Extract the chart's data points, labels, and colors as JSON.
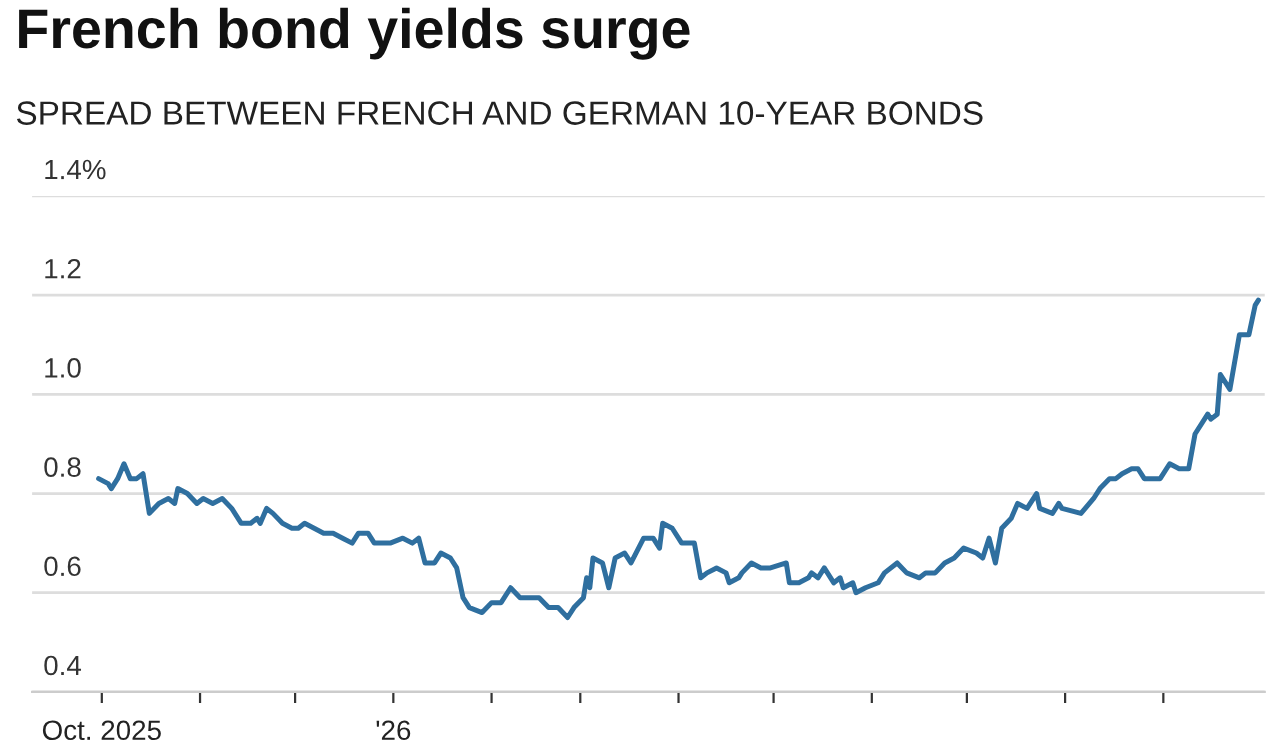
{
  "chart_data": {
    "type": "line",
    "title": "French bond yields surge",
    "subtitle": "SPREAD BETWEEN FRENCH AND GERMAN 10-YEAR BONDS",
    "x": [
      "2025-09-30",
      "2025-10-03",
      "2025-10-04",
      "2025-10-06",
      "2025-10-08",
      "2025-10-10",
      "2025-10-12",
      "2025-10-14",
      "2025-10-16",
      "2025-10-19",
      "2025-10-22",
      "2025-10-24",
      "2025-10-25",
      "2025-10-28",
      "2025-10-31",
      "2025-11-02",
      "2025-11-05",
      "2025-11-08",
      "2025-11-11",
      "2025-11-14",
      "2025-11-17",
      "2025-11-19",
      "2025-11-20",
      "2025-11-22",
      "2025-11-24",
      "2025-11-27",
      "2025-11-30",
      "2025-12-02",
      "2025-12-04",
      "2025-12-07",
      "2025-12-10",
      "2025-12-13",
      "2025-12-16",
      "2025-12-19",
      "2025-12-21",
      "2025-12-24",
      "2025-12-26",
      "2025-12-31",
      "2026-01-04",
      "2026-01-07",
      "2026-01-09",
      "2026-01-11",
      "2026-01-14",
      "2026-01-16",
      "2026-01-19",
      "2026-01-21",
      "2026-01-23",
      "2026-01-25",
      "2026-01-29",
      "2026-02-01",
      "2026-02-04",
      "2026-02-07",
      "2026-02-10",
      "2026-02-12",
      "2026-02-16",
      "2026-02-19",
      "2026-02-22",
      "2026-02-25",
      "2026-02-27",
      "2026-03-02",
      "2026-03-03",
      "2026-03-04",
      "2026-03-05",
      "2026-03-08",
      "2026-03-10",
      "2026-03-12",
      "2026-03-15",
      "2026-03-17",
      "2026-03-21",
      "2026-03-24",
      "2026-03-26",
      "2026-03-27",
      "2026-03-30",
      "2026-04-02",
      "2026-04-06",
      "2026-04-08",
      "2026-04-10",
      "2026-04-13",
      "2026-04-16",
      "2026-04-17",
      "2026-04-20",
      "2026-04-21",
      "2026-04-24",
      "2026-04-27",
      "2026-04-30",
      "2026-05-05",
      "2026-05-06",
      "2026-05-09",
      "2026-05-12",
      "2026-05-13",
      "2026-05-15",
      "2026-05-17",
      "2026-05-20",
      "2026-05-22",
      "2026-05-23",
      "2026-05-26",
      "2026-05-27",
      "2026-05-30",
      "2026-06-03",
      "2026-06-05",
      "2026-06-09",
      "2026-06-12",
      "2026-06-16",
      "2026-06-18",
      "2026-06-21",
      "2026-06-24",
      "2026-06-27",
      "2026-06-30",
      "2026-07-04",
      "2026-07-06",
      "2026-07-08",
      "2026-07-10",
      "2026-07-12",
      "2026-07-15",
      "2026-07-17",
      "2026-07-20",
      "2026-07-23",
      "2026-07-24",
      "2026-07-28",
      "2026-07-30",
      "2026-07-31",
      "2026-08-06",
      "2026-08-10",
      "2026-08-12",
      "2026-08-15",
      "2026-08-17",
      "2026-08-19",
      "2026-08-22",
      "2026-08-24",
      "2026-08-26",
      "2026-08-29",
      "2026-08-31",
      "2026-09-03",
      "2026-09-06",
      "2026-09-09",
      "2026-09-11",
      "2026-09-15",
      "2026-09-16",
      "2026-09-18",
      "2026-09-19",
      "2026-09-22",
      "2026-09-25",
      "2026-09-28",
      "2026-09-30",
      "2026-10-01"
    ],
    "series": [
      {
        "color": "#2f6f9f",
        "values": [
          0.83,
          0.82,
          0.81,
          0.83,
          0.86,
          0.83,
          0.83,
          0.84,
          0.76,
          0.78,
          0.79,
          0.78,
          0.81,
          0.8,
          0.78,
          0.79,
          0.78,
          0.79,
          0.77,
          0.74,
          0.74,
          0.75,
          0.74,
          0.77,
          0.76,
          0.74,
          0.73,
          0.73,
          0.74,
          0.73,
          0.72,
          0.72,
          0.71,
          0.7,
          0.72,
          0.72,
          0.7,
          0.7,
          0.71,
          0.7,
          0.71,
          0.66,
          0.66,
          0.68,
          0.67,
          0.65,
          0.59,
          0.57,
          0.56,
          0.58,
          0.58,
          0.61,
          0.59,
          0.59,
          0.59,
          0.57,
          0.57,
          0.55,
          0.57,
          0.59,
          0.63,
          0.61,
          0.67,
          0.66,
          0.61,
          0.67,
          0.68,
          0.66,
          0.71,
          0.71,
          0.69,
          0.74,
          0.73,
          0.7,
          0.7,
          0.63,
          0.64,
          0.65,
          0.64,
          0.62,
          0.63,
          0.64,
          0.66,
          0.65,
          0.65,
          0.66,
          0.62,
          0.62,
          0.63,
          0.64,
          0.63,
          0.65,
          0.62,
          0.63,
          0.61,
          0.62,
          0.6,
          0.61,
          0.62,
          0.64,
          0.66,
          0.64,
          0.63,
          0.64,
          0.64,
          0.66,
          0.67,
          0.69,
          0.68,
          0.67,
          0.71,
          0.66,
          0.73,
          0.75,
          0.78,
          0.77,
          0.8,
          0.77,
          0.76,
          0.78,
          0.77,
          0.76,
          0.79,
          0.81,
          0.83,
          0.83,
          0.84,
          0.85,
          0.85,
          0.83,
          0.83,
          0.83,
          0.86,
          0.85,
          0.85,
          0.92,
          0.96,
          0.95,
          0.96,
          1.04,
          1.01,
          1.12,
          1.12,
          1.18,
          1.19
        ]
      }
    ],
    "xlim": [
      "2025-09-09",
      "2026-10-03"
    ],
    "xticks": [
      {
        "value": "2025-10-01",
        "label": "Oct. 2025"
      },
      {
        "value": "2025-11-01",
        "label": null
      },
      {
        "value": "2025-12-01",
        "label": null
      },
      {
        "value": "2026-01-01",
        "label": "'26"
      },
      {
        "value": "2026-02-01",
        "label": null
      },
      {
        "value": "2026-03-01",
        "label": null
      },
      {
        "value": "2026-04-01",
        "label": null
      },
      {
        "value": "2026-05-01",
        "label": null
      },
      {
        "value": "2026-06-01",
        "label": null
      },
      {
        "value": "2026-07-01",
        "label": null
      },
      {
        "value": "2026-08-01",
        "label": null
      },
      {
        "value": "2026-09-01",
        "label": null
      }
    ],
    "ylim": [
      0.4,
      1.4
    ],
    "yticks": [
      {
        "value": 0.4,
        "label": "0.4"
      },
      {
        "value": 0.6,
        "label": "0.6"
      },
      {
        "value": 0.8,
        "label": "0.8"
      },
      {
        "value": 1.0,
        "label": "1.0"
      },
      {
        "value": 1.2,
        "label": "1.2"
      },
      {
        "value": 1.4,
        "label": "1.4%"
      }
    ],
    "grid": "y",
    "marker": "none",
    "line_style": "solid"
  }
}
